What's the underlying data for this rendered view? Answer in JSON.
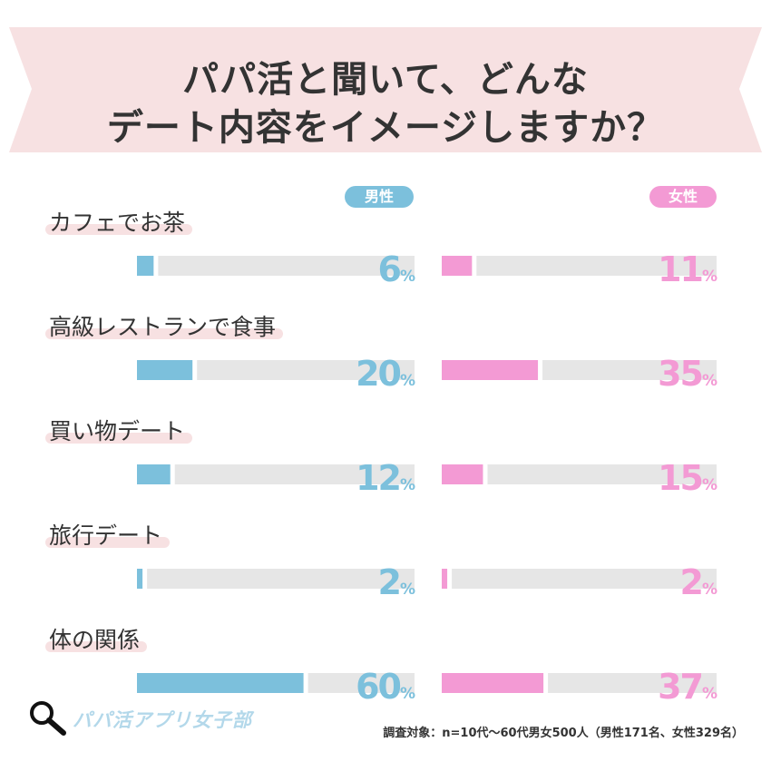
{
  "title": {
    "line1": "パパ活と聞いて、どんな",
    "line2": "デート内容をイメージしますか？"
  },
  "legend": {
    "male": "男性",
    "female": "女性"
  },
  "colors": {
    "male": "#7cc0dc",
    "female": "#f39ad4",
    "track": "#e6e6e6",
    "banner": "#f7e1e2",
    "label_underline": "#f7e1e2"
  },
  "chart_data": {
    "type": "bar",
    "title": "パパ活と聞いて、どんなデート内容をイメージしますか？",
    "categories": [
      "カフェでお茶",
      "高級レストランで食事",
      "買い物デート",
      "旅行デート",
      "体の関係"
    ],
    "series": [
      {
        "name": "男性",
        "values": [
          6,
          20,
          12,
          2,
          60
        ]
      },
      {
        "name": "女性",
        "values": [
          11,
          35,
          15,
          2,
          37
        ]
      }
    ],
    "unit": "%",
    "ylim": [
      0,
      100
    ]
  },
  "logo": {
    "text": "パパ活アプリ女子部",
    "icon": "magnifier-icon"
  },
  "footer": {
    "note": "調査対象：n=10代〜60代男女500人（男性171名、女性329名）"
  }
}
